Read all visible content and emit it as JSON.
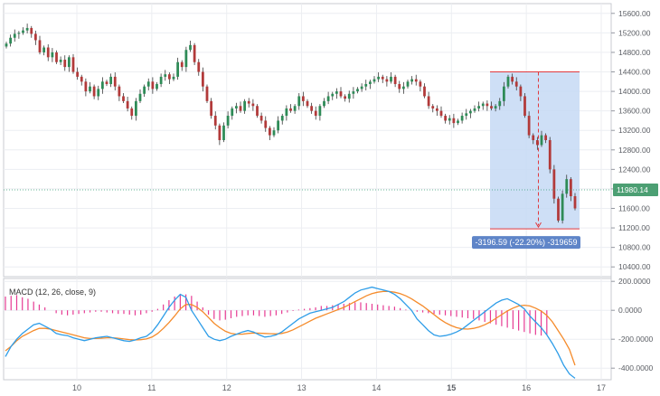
{
  "chart_data": [
    {
      "type": "candlestick",
      "title": "",
      "x_ticks": [
        "10",
        "11",
        "12",
        "13",
        "14",
        "15",
        "16",
        "17"
      ],
      "x_tick_bold": "15",
      "ylim": [
        10200,
        15800
      ],
      "y_ticks": [
        "15600.00",
        "15200.00",
        "14800.00",
        "14400.00",
        "14000.00",
        "13600.00",
        "13200.00",
        "12800.00",
        "12400.00",
        "12000.00",
        "11600.00",
        "11200.00",
        "10800.00",
        "10400.00"
      ],
      "last_price": 11980.14,
      "last_price_label": "11980.14",
      "range_measure": {
        "from_price": 14400,
        "to_price": 11180,
        "label": "-3196.59 (-22.20%) -319659"
      },
      "series": [
        {
          "name": "price",
          "close": [
            14980,
            15100,
            15180,
            15200,
            15250,
            15300,
            15180,
            15050,
            14800,
            14900,
            14700,
            14800,
            14600,
            14650,
            14500,
            14700,
            14400,
            14300,
            14200,
            14000,
            14100,
            13900,
            14050,
            14200,
            14150,
            14300,
            14100,
            13900,
            13800,
            13650,
            13500,
            13800,
            13950,
            14100,
            14200,
            14050,
            14150,
            14300,
            14350,
            14250,
            14300,
            14600,
            14500,
            14850,
            14950,
            14600,
            14400,
            14100,
            13800,
            13500,
            13300,
            13000,
            13300,
            13500,
            13650,
            13700,
            13600,
            13800,
            13750,
            13700,
            13500,
            13400,
            13250,
            13100,
            13200,
            13400,
            13500,
            13650,
            13600,
            13700,
            13900,
            13800,
            13700,
            13600,
            13500,
            13700,
            13800,
            13900,
            13950,
            14000,
            13900,
            13850,
            13950,
            14000,
            14050,
            14100,
            14150,
            14200,
            14250,
            14300,
            14250,
            14200,
            14300,
            14150,
            14050,
            14100,
            14200,
            14250,
            14200,
            14100,
            13900,
            13700,
            13650,
            13600,
            13500,
            13400,
            13450,
            13350,
            13400,
            13500,
            13550,
            13600,
            13650,
            13700,
            13750,
            13700,
            13650,
            13700,
            13800,
            14100,
            14300,
            14200,
            14100,
            13900,
            13500,
            13100,
            13000,
            12900,
            13100,
            13000,
            12400,
            11800,
            11350,
            11900,
            12200,
            11850,
            11600
          ]
        }
      ]
    },
    {
      "type": "line",
      "title": "MACD (12, 26, close, 9)",
      "ylim": [
        -480,
        220
      ],
      "y_ticks": [
        "200.0000",
        "0.0000",
        "-200.0000",
        "-400.0000"
      ],
      "series": [
        {
          "name": "MACD",
          "values": [
            -320,
            -250,
            -200,
            -160,
            -130,
            -100,
            -90,
            -110,
            -130,
            -160,
            -170,
            -175,
            -190,
            -200,
            -210,
            -200,
            -190,
            -185,
            -180,
            -190,
            -200,
            -210,
            -215,
            -205,
            -190,
            -180,
            -150,
            -100,
            -40,
            20,
            70,
            110,
            90,
            0,
            -60,
            -120,
            -180,
            -200,
            -210,
            -200,
            -180,
            -165,
            -150,
            -140,
            -150,
            -170,
            -185,
            -180,
            -170,
            -150,
            -120,
            -90,
            -60,
            -40,
            -20,
            -10,
            0,
            10,
            20,
            40,
            60,
            90,
            120,
            140,
            150,
            160,
            150,
            140,
            130,
            110,
            80,
            40,
            0,
            -60,
            -100,
            -140,
            -170,
            -180,
            -175,
            -165,
            -150,
            -130,
            -100,
            -70,
            -40,
            -10,
            20,
            50,
            70,
            80,
            60,
            40,
            10,
            -40,
            -80,
            -120,
            -170,
            -230,
            -300,
            -380,
            -440,
            -470
          ]
        },
        {
          "name": "Signal",
          "values": [
            -280,
            -250,
            -210,
            -180,
            -160,
            -140,
            -125,
            -125,
            -130,
            -140,
            -150,
            -160,
            -170,
            -180,
            -190,
            -195,
            -195,
            -193,
            -190,
            -190,
            -193,
            -198,
            -203,
            -205,
            -203,
            -198,
            -185,
            -160,
            -125,
            -85,
            -40,
            10,
            40,
            40,
            20,
            -10,
            -50,
            -90,
            -120,
            -145,
            -160,
            -165,
            -165,
            -160,
            -157,
            -158,
            -160,
            -162,
            -163,
            -160,
            -150,
            -135,
            -115,
            -95,
            -75,
            -55,
            -40,
            -25,
            -10,
            5,
            20,
            40,
            60,
            80,
            100,
            115,
            125,
            130,
            130,
            125,
            115,
            100,
            80,
            55,
            30,
            0,
            -30,
            -60,
            -85,
            -105,
            -120,
            -128,
            -130,
            -125,
            -115,
            -100,
            -80,
            -55,
            -30,
            -5,
            15,
            30,
            35,
            30,
            15,
            -5,
            -35,
            -80,
            -140,
            -200,
            -270,
            -380
          ]
        },
        {
          "name": "Histogram",
          "values": [
            95,
            100,
            105,
            90,
            80,
            60,
            40,
            20,
            0,
            -20,
            -30,
            -35,
            -30,
            -25,
            -20,
            -15,
            -10,
            -10,
            -15,
            -20,
            -25,
            -25,
            -30,
            -35,
            -30,
            -20,
            -10,
            10,
            40,
            70,
            95,
            110,
            110,
            100,
            60,
            20,
            -30,
            -60,
            -70,
            -65,
            -55,
            -45,
            -40,
            -35,
            -35,
            -40,
            -45,
            -40,
            -35,
            -25,
            -15,
            -5,
            5,
            10,
            15,
            20,
            30,
            30,
            35,
            40,
            45,
            50,
            55,
            55,
            50,
            45,
            40,
            35,
            30,
            25,
            15,
            5,
            0,
            -10,
            -15,
            -20,
            -25,
            -30,
            -35,
            -40,
            -45,
            -50,
            -55,
            -60,
            -70,
            -80,
            -90,
            -100,
            -110,
            -120,
            -130,
            -140,
            -150,
            -160,
            -170,
            -175,
            -170
          ]
        }
      ]
    }
  ]
}
